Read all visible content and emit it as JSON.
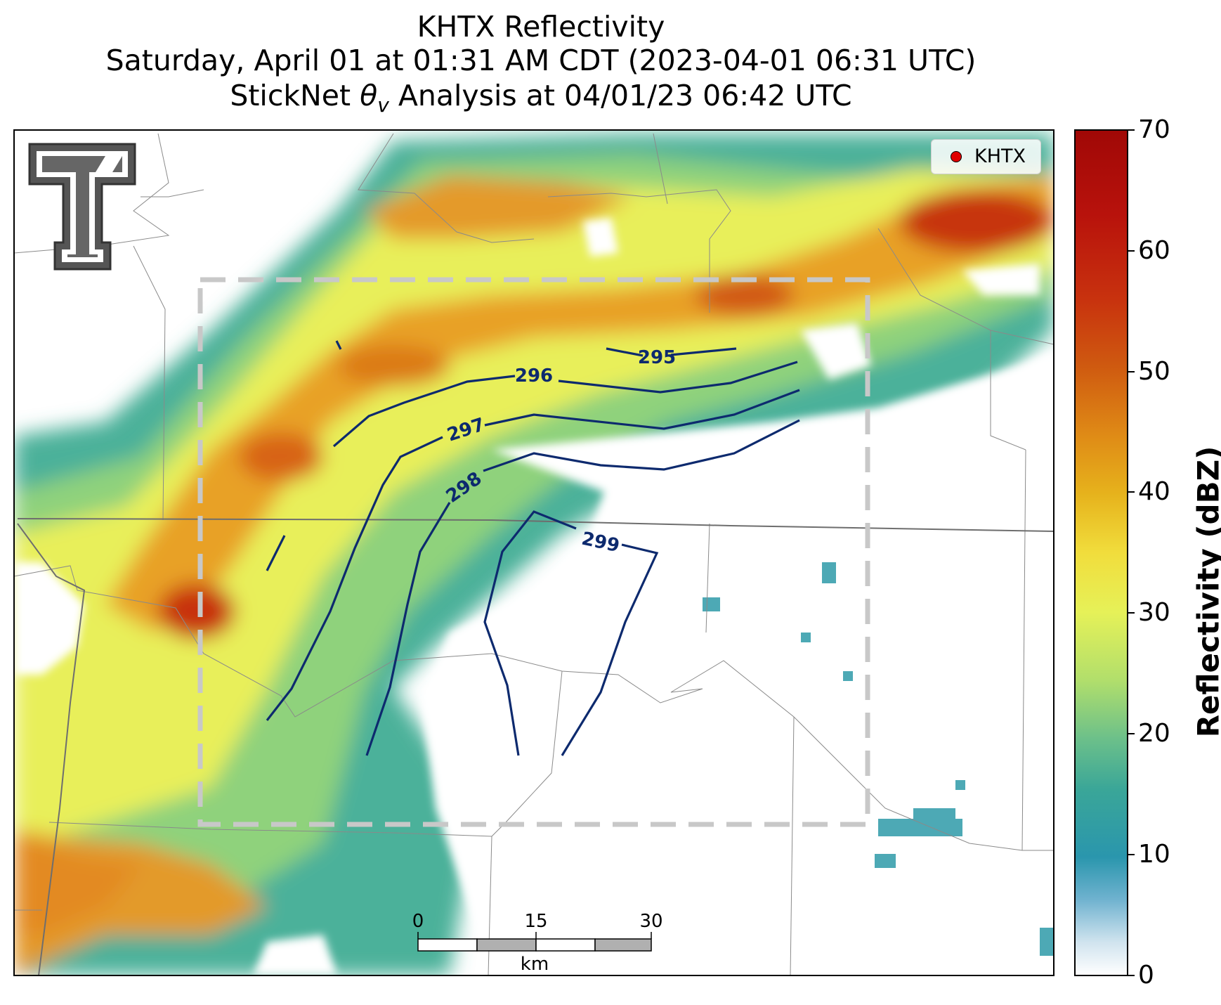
{
  "titles": {
    "line1": "KHTX Reflectivity",
    "line2": "Saturday, April 01 at 01:31 AM CDT (2023-04-01 06:31 UTC)",
    "line3_prefix": "StickNet ",
    "line3_theta": "θ",
    "line3_sub": "v",
    "line3_suffix": " Analysis at 04/01/23 06:42 UTC"
  },
  "legend": {
    "marker_color": "#e00000",
    "label": "KHTX"
  },
  "colorbar": {
    "label": "Reflectivity (dBZ)",
    "min": 0,
    "max": 70,
    "ticks": [
      "0",
      "10",
      "20",
      "30",
      "40",
      "50",
      "60",
      "70"
    ]
  },
  "contours": {
    "color": "#0d2a6e",
    "labels": [
      "295",
      "296",
      "297",
      "298",
      "299"
    ]
  },
  "scalebar": {
    "ticks": [
      "0",
      "15",
      "30"
    ],
    "unit": "km"
  },
  "logo": {
    "name": "Texas Tech Double T"
  }
}
